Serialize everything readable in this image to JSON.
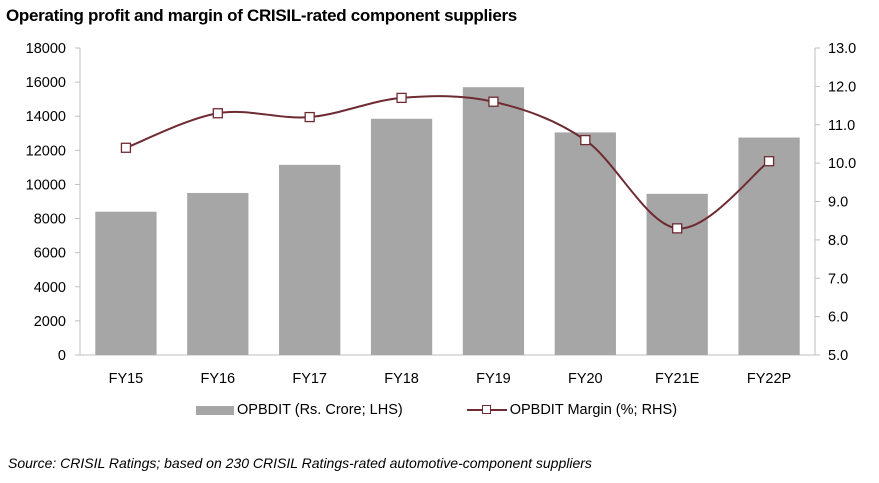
{
  "chart_data": {
    "type": "bar",
    "title": "Operating profit and margin of CRISIL-rated component suppliers",
    "categories": [
      "FY15",
      "FY16",
      "FY17",
      "FY18",
      "FY19",
      "FY20",
      "FY21E",
      "FY22P"
    ],
    "series": [
      {
        "name": "OPBDIT (Rs. Crore; LHS)",
        "type": "bar",
        "axis": "left",
        "color": "#a6a6a6",
        "values": [
          8400,
          9500,
          11150,
          13850,
          15700,
          13050,
          9450,
          12750
        ]
      },
      {
        "name": "OPBDIT Margin (%; RHS)",
        "type": "line",
        "axis": "right",
        "color": "#6e2b32",
        "marker": "square-hollow",
        "smooth": true,
        "values": [
          10.4,
          11.3,
          11.2,
          11.7,
          11.6,
          10.6,
          8.3,
          10.05
        ]
      }
    ],
    "left_axis": {
      "label": "",
      "ylim": [
        0,
        18000
      ],
      "ticks": [
        "0",
        "2000",
        "4000",
        "6000",
        "8000",
        "10000",
        "12000",
        "14000",
        "16000",
        "18000"
      ]
    },
    "right_axis": {
      "label": "",
      "ylim": [
        5.0,
        13.0
      ],
      "ticks": [
        "5.0",
        "6.0",
        "7.0",
        "8.0",
        "9.0",
        "10.0",
        "11.0",
        "12.0",
        "13.0"
      ]
    },
    "xlabel": "",
    "grid": false,
    "legend_position": "bottom"
  },
  "source": "Source: CRISIL Ratings; based on 230 CRISIL Ratings-rated automotive-component  suppliers"
}
